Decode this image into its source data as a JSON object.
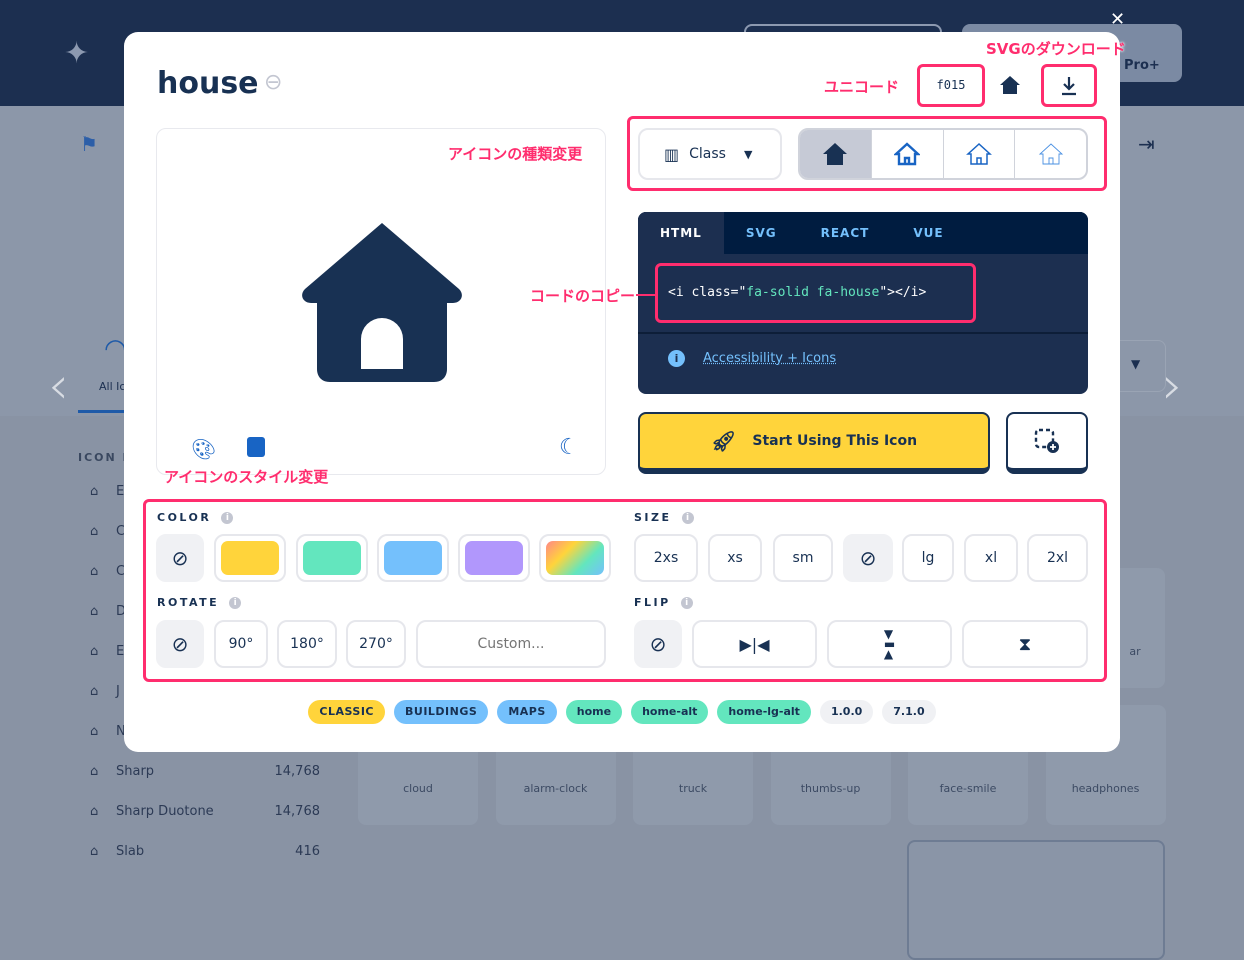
{
  "background": {
    "sidebar": {
      "heading": "ICON P",
      "items": [
        {
          "icon": "flag-icon",
          "label": "E",
          "count": ""
        },
        {
          "icon": "house-chimney-icon",
          "label": "C",
          "count": ""
        },
        {
          "icon": "house-icon",
          "label": "C",
          "count": ""
        },
        {
          "icon": "house-duotone-icon",
          "label": "D",
          "count": ""
        },
        {
          "icon": "house-icon",
          "label": "E",
          "count": ""
        },
        {
          "icon": "house-thin-icon",
          "label": "J",
          "count": ""
        },
        {
          "icon": "house-icon",
          "label": "N",
          "count": ""
        },
        {
          "icon": "house-sharp-icon",
          "label": "Sharp",
          "count": "14,768"
        },
        {
          "icon": "house-sharp-duotone-icon",
          "label": "Sharp Duotone",
          "count": "14,768"
        },
        {
          "icon": "house-slab-icon",
          "label": "Slab",
          "count": "416"
        }
      ]
    },
    "all_icons_tab": "All Ic",
    "pro_button": "Pro+",
    "grid": [
      "cloud",
      "alarm-clock",
      "truck",
      "thumbs-up",
      "face-smile",
      "headphones"
    ],
    "partial_card": "ar"
  },
  "modal": {
    "title": "house",
    "unicode": "f015",
    "style_select": "Class",
    "code_tabs": [
      "HTML",
      "SVG",
      "REACT",
      "VUE"
    ],
    "code": {
      "p1": "<i class=\"",
      "p2": "fa-solid fa-house",
      "p3": "\"></i>"
    },
    "accessibility_link": "Accessibility + Icons",
    "start_button": "Start Using This Icon",
    "color_label": "COLOR",
    "colors": [
      "#ffd43b",
      "#63e6be",
      "#74c0fc",
      "#b197fc",
      "gradient"
    ],
    "size_label": "SIZE",
    "sizes": [
      "2xs",
      "xs",
      "sm",
      "",
      "lg",
      "xl",
      "2xl"
    ],
    "rotate_label": "ROTATE",
    "rotations": [
      "90°",
      "180°",
      "270°"
    ],
    "custom_placeholder": "Custom...",
    "flip_label": "FLIP",
    "tags": [
      {
        "text": "CLASSIC",
        "color": "#ffd43b"
      },
      {
        "text": "BUILDINGS",
        "color": "#74c0fc"
      },
      {
        "text": "MAPS",
        "color": "#74c0fc"
      },
      {
        "text": "home",
        "color": "#63e6be"
      },
      {
        "text": "home-alt",
        "color": "#63e6be"
      },
      {
        "text": "home-lg-alt",
        "color": "#63e6be"
      },
      {
        "text": "1.0.0",
        "color": "#f0f1f4"
      },
      {
        "text": "7.1.0",
        "color": "#f0f1f4"
      }
    ]
  },
  "annotations": {
    "svg_download": "SVGのダウンロード",
    "unicode": "ユニコード",
    "icon_type": "アイコンの種類変更",
    "code_copy": "コードのコピー",
    "icon_style": "アイコンのスタイル変更"
  }
}
